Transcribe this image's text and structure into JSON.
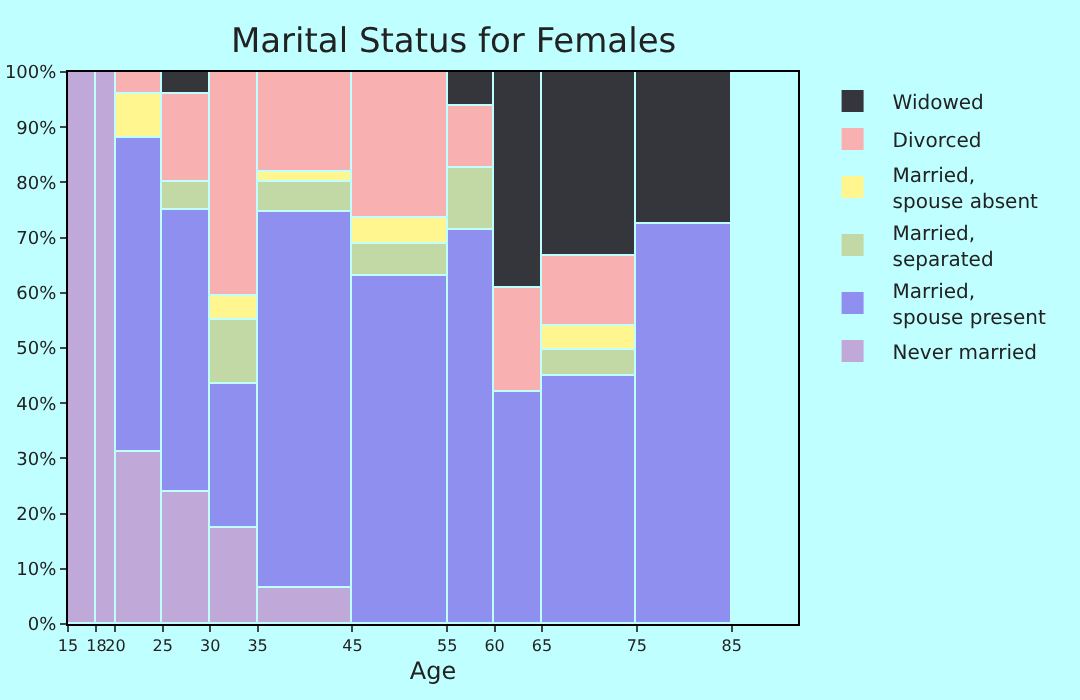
{
  "chart_data": {
    "type": "bar",
    "stacked": true,
    "title": "Marital Status for Females",
    "xlabel": "Age",
    "x": [
      16.5,
      19,
      22.5,
      27.5,
      32.5,
      40,
      50,
      57.5,
      62.5,
      70,
      80
    ],
    "xlim": [
      15,
      92
    ],
    "xticks": [
      15,
      18,
      20,
      25,
      30,
      35,
      45,
      55,
      60,
      65,
      75,
      85
    ],
    "ylim": [
      0,
      100
    ],
    "yticks": [
      {
        "value": 0,
        "label": "0%"
      },
      {
        "value": 10,
        "label": "10%"
      },
      {
        "value": 20,
        "label": "20%"
      },
      {
        "value": 30,
        "label": "30%"
      },
      {
        "value": 40,
        "label": "40%"
      },
      {
        "value": 50,
        "label": "50%"
      },
      {
        "value": 60,
        "label": "60%"
      },
      {
        "value": 70,
        "label": "70%"
      },
      {
        "value": 80,
        "label": "80%"
      },
      {
        "value": 90,
        "label": "90%"
      },
      {
        "value": 100,
        "label": "100%"
      }
    ],
    "grid": false,
    "legend": "right",
    "series": [
      {
        "name": "Never married",
        "color": "#c0a8d8",
        "values": [
          100,
          100,
          31,
          24,
          17.5,
          6.5,
          null,
          null,
          null,
          null,
          null
        ]
      },
      {
        "name": "Married, spouse present",
        "color": "#8f8ff0",
        "values": [
          null,
          null,
          57,
          51,
          26,
          68,
          63,
          71.5,
          42,
          45,
          72.5
        ]
      },
      {
        "name": "Married, separated",
        "color": "#c2d9a5",
        "values": [
          null,
          null,
          null,
          5,
          11.5,
          5.5,
          6,
          11,
          null,
          4.5,
          null
        ]
      },
      {
        "name": "Married, spouse absent",
        "color": "#fff68f",
        "values": [
          null,
          null,
          8,
          null,
          4.5,
          2,
          4.5,
          null,
          null,
          4.5,
          null
        ]
      },
      {
        "name": "Divorced",
        "color": "#f9b0b0",
        "values": [
          null,
          null,
          4,
          16,
          40.5,
          18,
          26.5,
          11.5,
          19,
          12.5,
          null
        ]
      },
      {
        "name": "Widowed",
        "color": "#35363b",
        "values": [
          null,
          null,
          null,
          4,
          null,
          null,
          null,
          6,
          39,
          33.5,
          27.5
        ]
      }
    ]
  }
}
